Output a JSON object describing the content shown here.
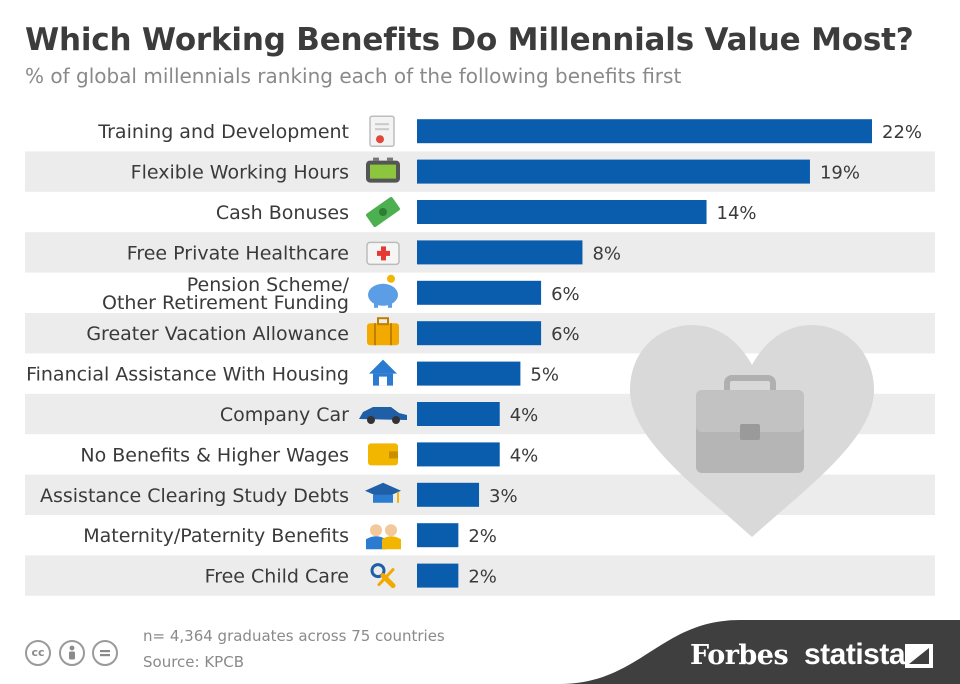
{
  "header": {
    "title": "Which Working Benefits Do Millennials Value Most?",
    "subtitle": "% of global millennials ranking each of the following benefits first"
  },
  "footer": {
    "note": "n= 4,364 graduates across 75 countries",
    "source": "Source: KPCB",
    "cc_icons": [
      "cc-icon",
      "attribution-icon",
      "no-derivatives-icon"
    ],
    "brands": [
      "Forbes",
      "statista"
    ]
  },
  "colors": {
    "bar": "#0a5cad",
    "stripe": "#ececec",
    "heart": "#d9d9d9",
    "briefcase": "#b5b5b5",
    "footer_band": "#3f3f3f"
  },
  "chart_data": {
    "type": "bar",
    "orientation": "horizontal",
    "title": "Which Working Benefits Do Millennials Value Most?",
    "subtitle": "% of global millennials ranking each of the following benefits first",
    "categories": [
      [
        "Training and Development"
      ],
      [
        "Flexible Working Hours"
      ],
      [
        "Cash Bonuses"
      ],
      [
        "Free Private Healthcare"
      ],
      [
        "Pension Scheme/",
        "Other Retirement Funding"
      ],
      [
        "Greater Vacation Allowance"
      ],
      [
        "Financial Assistance With Housing"
      ],
      [
        "Company Car"
      ],
      [
        "No Benefits & Higher Wages"
      ],
      [
        "Assistance Clearing Study Debts"
      ],
      [
        "Maternity/Paternity Benefits"
      ],
      [
        "Free Child Care"
      ]
    ],
    "values": [
      22,
      19,
      14,
      8,
      6,
      6,
      5,
      4,
      4,
      3,
      2,
      2
    ],
    "value_suffix": "%",
    "icons": [
      "certificate-icon",
      "alarm-clock-icon",
      "cash-icon",
      "first-aid-kit-icon",
      "piggy-bank-icon",
      "suitcase-icon",
      "house-icon",
      "car-icon",
      "wallet-icon",
      "graduation-cap-icon",
      "parents-icon",
      "pacifier-icon"
    ],
    "xlim": [
      0,
      22
    ],
    "grid": false,
    "legend": "none"
  }
}
